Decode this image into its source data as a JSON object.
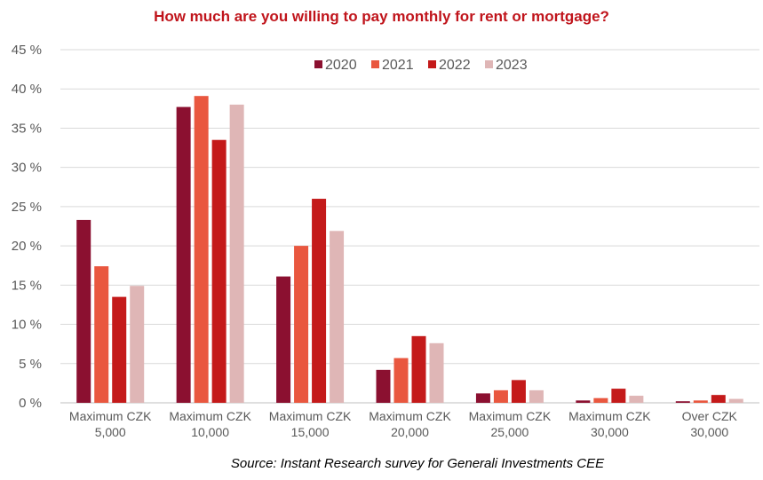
{
  "chart_data": {
    "type": "bar",
    "title": "How much are you willing to pay monthly for rent or mortgage?",
    "source": "Source: Instant Research survey for Generali Investments CEE",
    "xlabel": "",
    "ylabel": "",
    "ylim": [
      0,
      45
    ],
    "yticks": [
      "0 %",
      "5 %",
      "10 %",
      "15 %",
      "20 %",
      "25 %",
      "30 %",
      "35 %",
      "40 %",
      "45 %"
    ],
    "grid": true,
    "legend_position": "top-center",
    "categories": [
      [
        "Maximum CZK",
        "5,000"
      ],
      [
        "Maximum CZK",
        "10,000"
      ],
      [
        "Maximum CZK",
        "15,000"
      ],
      [
        "Maximum CZK",
        "20,000"
      ],
      [
        "Maximum CZK",
        "25,000"
      ],
      [
        "Maximum CZK",
        "30,000"
      ],
      [
        "Over CZK",
        "30,000"
      ]
    ],
    "series": [
      {
        "name": "2020",
        "color": "#8B1030",
        "values": [
          23.3,
          37.7,
          16.1,
          4.2,
          1.2,
          0.3,
          0.2
        ]
      },
      {
        "name": "2021",
        "color": "#E9573F",
        "values": [
          17.4,
          39.1,
          20.0,
          5.7,
          1.6,
          0.6,
          0.3
        ]
      },
      {
        "name": "2022",
        "color": "#C41A1A",
        "values": [
          13.5,
          33.5,
          26.0,
          8.5,
          2.9,
          1.8,
          1.0
        ]
      },
      {
        "name": "2023",
        "color": "#DFB6B6",
        "values": [
          14.9,
          38.0,
          21.9,
          7.6,
          1.6,
          0.9,
          0.5
        ]
      }
    ]
  }
}
